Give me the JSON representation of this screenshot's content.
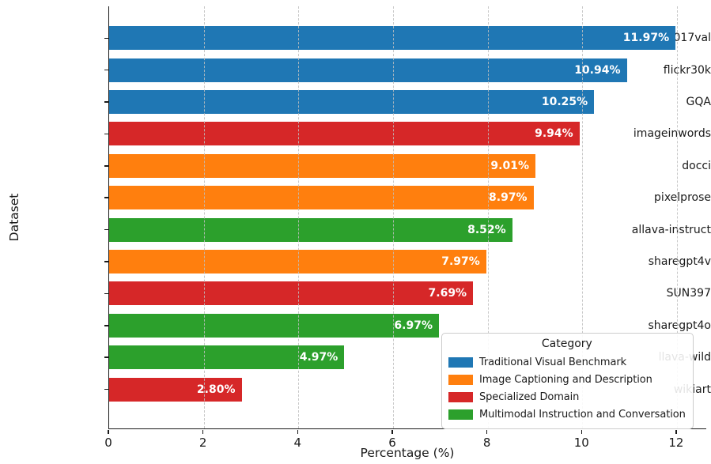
{
  "figure": {
    "background": "#ffffff",
    "text_color": "#1a1a1a",
    "grid_color": "#bebebe",
    "bar_label_color": "#ffffff",
    "spine_color": "#1a1a1a"
  },
  "chart_data": {
    "type": "bar",
    "orientation": "horizontal",
    "xlabel": "Percentage (%)",
    "ylabel": "Dataset",
    "xlim": [
      0,
      12.62
    ],
    "xticks": [
      0,
      2,
      4,
      6,
      8,
      10,
      12
    ],
    "xtick_labels": [
      "0",
      "2",
      "4",
      "6",
      "8",
      "10",
      "12"
    ],
    "grid": {
      "axis": "x",
      "style": "dashed",
      "on": true,
      "above_bars": true
    },
    "categories": [
      "coco2017val",
      "flickr30k",
      "GQA",
      "imageinwords",
      "docci",
      "pixelprose",
      "allava-instruct",
      "sharegpt4v",
      "SUN397",
      "sharegpt4o",
      "llava-wild",
      "wikiart"
    ],
    "values": [
      11.97,
      10.94,
      10.25,
      9.94,
      9.01,
      8.97,
      8.52,
      7.97,
      7.69,
      6.97,
      4.97,
      2.8
    ],
    "bars": [
      {
        "dataset": "coco2017val",
        "value": 11.97,
        "label": "11.97%",
        "category": "Traditional Visual Benchmark",
        "color": "#1f77b4"
      },
      {
        "dataset": "flickr30k",
        "value": 10.94,
        "label": "10.94%",
        "category": "Traditional Visual Benchmark",
        "color": "#1f77b4"
      },
      {
        "dataset": "GQA",
        "value": 10.25,
        "label": "10.25%",
        "category": "Traditional Visual Benchmark",
        "color": "#1f77b4"
      },
      {
        "dataset": "imageinwords",
        "value": 9.94,
        "label": "9.94%",
        "category": "Specialized Domain",
        "color": "#d62728"
      },
      {
        "dataset": "docci",
        "value": 9.01,
        "label": "9.01%",
        "category": "Image Captioning and Description",
        "color": "#ff7f0e"
      },
      {
        "dataset": "pixelprose",
        "value": 8.97,
        "label": "8.97%",
        "category": "Image Captioning and Description",
        "color": "#ff7f0e"
      },
      {
        "dataset": "allava-instruct",
        "value": 8.52,
        "label": "8.52%",
        "category": "Multimodal Instruction and Conversation",
        "color": "#2ca02c"
      },
      {
        "dataset": "sharegpt4v",
        "value": 7.97,
        "label": "7.97%",
        "category": "Image Captioning and Description",
        "color": "#ff7f0e"
      },
      {
        "dataset": "SUN397",
        "value": 7.69,
        "label": "7.69%",
        "category": "Specialized Domain",
        "color": "#d62728"
      },
      {
        "dataset": "sharegpt4o",
        "value": 6.97,
        "label": "6.97%",
        "category": "Multimodal Instruction and Conversation",
        "color": "#2ca02c"
      },
      {
        "dataset": "llava-wild",
        "value": 4.97,
        "label": "4.97%",
        "category": "Multimodal Instruction and Conversation",
        "color": "#2ca02c"
      },
      {
        "dataset": "wikiart",
        "value": 2.8,
        "label": "2.80%",
        "category": "Specialized Domain",
        "color": "#d62728"
      }
    ],
    "legend": {
      "title": "Category",
      "position": "lower-right",
      "entries": [
        {
          "label": "Traditional Visual Benchmark",
          "color": "#1f77b4"
        },
        {
          "label": "Image Captioning and Description",
          "color": "#ff7f0e"
        },
        {
          "label": "Specialized Domain",
          "color": "#d62728"
        },
        {
          "label": "Multimodal Instruction and Conversation",
          "color": "#2ca02c"
        }
      ]
    }
  }
}
